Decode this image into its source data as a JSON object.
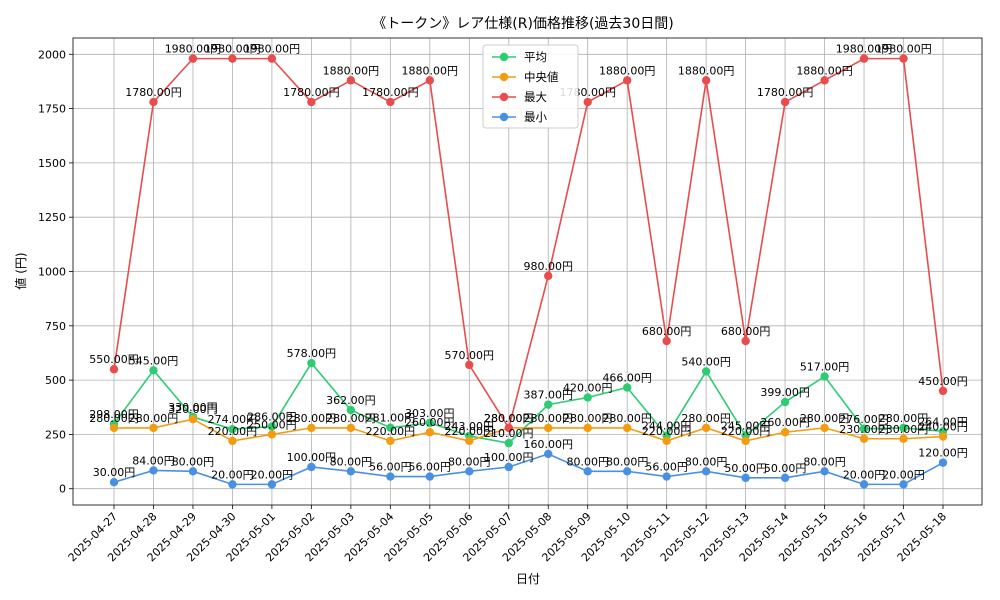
{
  "chart_data": {
    "type": "line",
    "title": "《トークン》レア仕様(R)価格推移(過去30日間)",
    "xlabel": "日付",
    "ylabel": "値 (円)",
    "ylim": [
      -75,
      2075
    ],
    "yticks": [
      0,
      250,
      500,
      750,
      1000,
      1250,
      1500,
      1750,
      2000
    ],
    "grid": true,
    "legend_position": "top-center",
    "value_suffix": "円",
    "x": [
      "2025-04-27",
      "2025-04-28",
      "2025-04-29",
      "2025-04-30",
      "2025-05-01",
      "2025-05-02",
      "2025-05-03",
      "2025-05-04",
      "2025-05-05",
      "2025-05-06",
      "2025-05-07",
      "2025-05-08",
      "2025-05-09",
      "2025-05-10",
      "2025-05-11",
      "2025-05-12",
      "2025-05-13",
      "2025-05-14",
      "2025-05-15",
      "2025-05-16",
      "2025-05-17",
      "2025-05-18"
    ],
    "series": [
      {
        "name": "平均",
        "color": "#2ecc71",
        "values": [
          298,
          545,
          330,
          274,
          286,
          578,
          362,
          281,
          303,
          243,
          210,
          387,
          420,
          466,
          244,
          540,
          245,
          399,
          517,
          276,
          280,
          264
        ]
      },
      {
        "name": "中央値",
        "color": "#f39c12",
        "values": [
          280,
          280,
          320,
          220,
          250,
          280,
          280,
          220,
          260,
          220,
          280,
          280,
          280,
          280,
          220,
          280,
          220,
          260,
          280,
          230,
          230,
          240
        ]
      },
      {
        "name": "最大",
        "color": "#e84c4c",
        "values": [
          550,
          1780,
          1980,
          1980,
          1980,
          1780,
          1880,
          1780,
          1880,
          570,
          280,
          980,
          1780,
          1880,
          680,
          1880,
          680,
          1780,
          1880,
          1980,
          1980,
          450
        ]
      },
      {
        "name": "最小",
        "color": "#4a90e2",
        "values": [
          30,
          84,
          80,
          20,
          20,
          100,
          80,
          56,
          56,
          80,
          100,
          160,
          80,
          80,
          56,
          80,
          50,
          50,
          80,
          20,
          20,
          120
        ]
      }
    ]
  }
}
